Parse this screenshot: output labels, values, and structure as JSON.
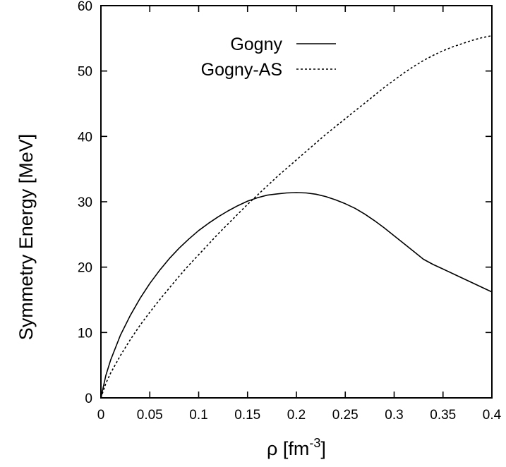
{
  "chart_data": {
    "type": "line",
    "title": "",
    "xlabel": "ρ [fm",
    "xlabel_exponent": "-3",
    "xlabel_suffix": "]",
    "ylabel": "Symmetry Energy [MeV]",
    "xlim": [
      0,
      0.4
    ],
    "ylim": [
      0,
      60
    ],
    "xticks": [
      "0",
      "0.05",
      "0.1",
      "0.15",
      "0.2",
      "0.25",
      "0.3",
      "0.35",
      "0.4"
    ],
    "yticks": [
      "0",
      "10",
      "20",
      "30",
      "40",
      "50",
      "60"
    ],
    "grid": false,
    "legend_position": "top-center",
    "series": [
      {
        "name": "Gogny",
        "line_style": "solid",
        "color": "#000000",
        "x": [
          0,
          0.005,
          0.01,
          0.02,
          0.03,
          0.04,
          0.05,
          0.06,
          0.07,
          0.08,
          0.09,
          0.1,
          0.11,
          0.12,
          0.13,
          0.14,
          0.15,
          0.16,
          0.17,
          0.18,
          0.19,
          0.2,
          0.21,
          0.22,
          0.23,
          0.24,
          0.25,
          0.26,
          0.27,
          0.28,
          0.29,
          0.3,
          0.31,
          0.32,
          0.33,
          0.34,
          0.35,
          0.36,
          0.37,
          0.38,
          0.39,
          0.4
        ],
        "y": [
          0,
          3.4,
          5.8,
          9.6,
          12.6,
          15.2,
          17.5,
          19.5,
          21.3,
          22.9,
          24.3,
          25.6,
          26.7,
          27.7,
          28.6,
          29.4,
          30.1,
          30.6,
          31.0,
          31.2,
          31.35,
          31.4,
          31.35,
          31.15,
          30.8,
          30.3,
          29.7,
          29.0,
          28.1,
          27.1,
          26.0,
          24.8,
          23.6,
          22.4,
          21.2,
          20.4,
          19.7,
          19.0,
          18.3,
          17.6,
          16.9,
          16.2
        ]
      },
      {
        "name": "Gogny-AS",
        "line_style": "dashed",
        "color": "#000000",
        "x": [
          0,
          0.005,
          0.01,
          0.02,
          0.03,
          0.04,
          0.05,
          0.06,
          0.07,
          0.08,
          0.09,
          0.1,
          0.11,
          0.12,
          0.13,
          0.14,
          0.15,
          0.16,
          0.17,
          0.18,
          0.19,
          0.2,
          0.21,
          0.22,
          0.23,
          0.24,
          0.25,
          0.26,
          0.27,
          0.28,
          0.29,
          0.3,
          0.31,
          0.32,
          0.33,
          0.34,
          0.35,
          0.36,
          0.37,
          0.38,
          0.39,
          0.4
        ],
        "y": [
          0,
          2.2,
          3.8,
          6.5,
          8.9,
          11.1,
          13.1,
          15.0,
          16.8,
          18.6,
          20.3,
          21.9,
          23.5,
          25.1,
          26.6,
          28.1,
          29.6,
          31.0,
          32.4,
          33.8,
          35.1,
          36.4,
          37.7,
          39.0,
          40.3,
          41.5,
          42.7,
          43.9,
          45.1,
          46.3,
          47.5,
          48.6,
          49.7,
          50.7,
          51.6,
          52.4,
          53.1,
          53.7,
          54.2,
          54.7,
          55.1,
          55.4
        ]
      }
    ]
  }
}
